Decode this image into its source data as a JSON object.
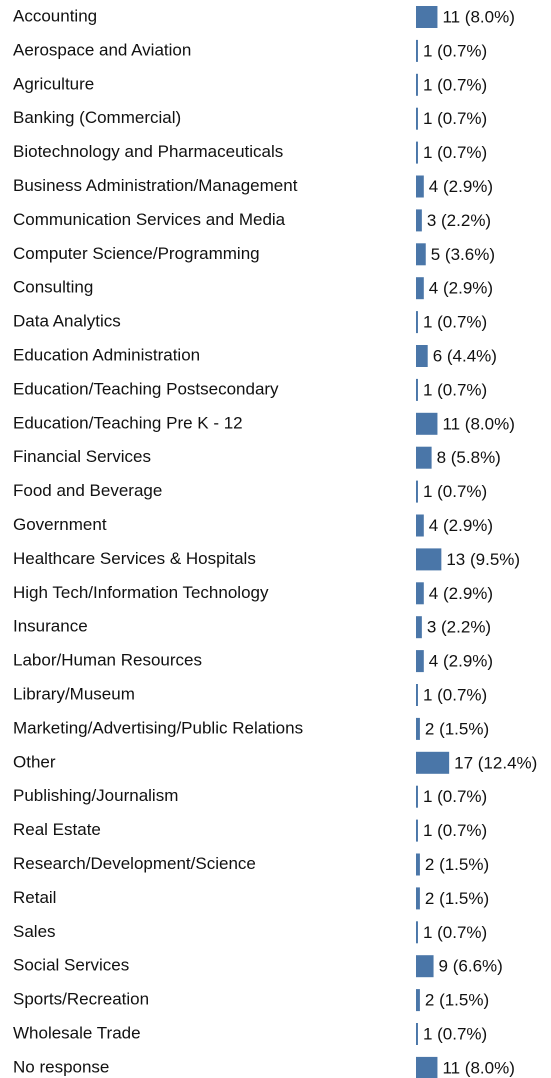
{
  "chart_data": {
    "type": "bar",
    "orientation": "horizontal",
    "color": "#4a76a8",
    "categories": [
      "Accounting",
      "Aerospace and Aviation",
      "Agriculture",
      "Banking (Commercial)",
      "Biotechnology and Pharmaceuticals",
      "Business Administration/Management",
      "Communication Services and Media",
      "Computer Science/Programming",
      "Consulting",
      "Data Analytics",
      "Education Administration",
      "Education/Teaching Postsecondary",
      "Education/Teaching Pre K - 12",
      "Financial Services",
      "Food and Beverage",
      "Government",
      "Healthcare Services & Hospitals",
      "High Tech/Information Technology",
      "Insurance",
      "Labor/Human Resources",
      "Library/Museum",
      "Marketing/Advertising/Public Relations",
      "Other",
      "Publishing/Journalism",
      "Real Estate",
      "Research/Development/Science",
      "Retail",
      "Sales",
      "Social Services",
      "Sports/Recreation",
      "Wholesale Trade",
      "No response"
    ],
    "values": [
      11,
      1,
      1,
      1,
      1,
      4,
      3,
      5,
      4,
      1,
      6,
      1,
      11,
      8,
      1,
      4,
      13,
      4,
      3,
      4,
      1,
      2,
      17,
      1,
      1,
      2,
      2,
      1,
      9,
      2,
      1,
      11
    ],
    "value_labels": [
      "11 (8.0%)",
      "1 (0.7%)",
      "1 (0.7%)",
      "1 (0.7%)",
      "1 (0.7%)",
      "4 (2.9%)",
      "3 (2.2%)",
      "5 (3.6%)",
      "4 (2.9%)",
      "1 (0.7%)",
      "6 (4.4%)",
      "1 (0.7%)",
      "11 (8.0%)",
      "8 (5.8%)",
      "1 (0.7%)",
      "4 (2.9%)",
      "13 (9.5%)",
      "4 (2.9%)",
      "3 (2.2%)",
      "4 (2.9%)",
      "1 (0.7%)",
      "2 (1.5%)",
      "17 (12.4%)",
      "1 (0.7%)",
      "1 (0.7%)",
      "2 (1.5%)",
      "2 (1.5%)",
      "1 (0.7%)",
      "9 (6.6%)",
      "2 (1.5%)",
      "1 (0.7%)",
      "11 (8.0%)"
    ]
  }
}
